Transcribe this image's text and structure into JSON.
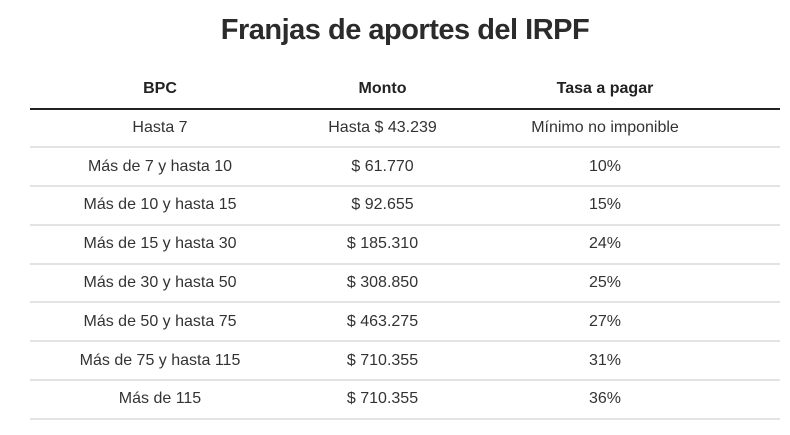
{
  "title": "Franjas de aportes del IRPF",
  "table": {
    "headers": [
      "BPC",
      "Monto",
      "Tasa a pagar"
    ],
    "rows": [
      [
        "Hasta 7",
        "Hasta $ 43.239",
        "Mínimo no imponible"
      ],
      [
        "Más de 7 y hasta 10",
        "$ 61.770",
        "10%"
      ],
      [
        "Más de 10 y hasta 15",
        "$ 92.655",
        "15%"
      ],
      [
        "Más de 15 y hasta 30",
        "$ 185.310",
        "24%"
      ],
      [
        "Más de 30 y hasta 50",
        "$ 308.850",
        "25%"
      ],
      [
        "Más de 50 y hasta 75",
        "$ 463.275",
        "27%"
      ],
      [
        "Más de 75 y hasta 115",
        "$ 710.355",
        "31%"
      ],
      [
        "Más de 115",
        "$ 710.355",
        "36%"
      ]
    ]
  },
  "chart_data": {
    "type": "table",
    "title": "Franjas de aportes del IRPF",
    "columns": [
      "BPC",
      "Monto",
      "Tasa a pagar"
    ],
    "rows": [
      {
        "BPC": "Hasta 7",
        "Monto": "Hasta $ 43.239",
        "Tasa a pagar": "Mínimo no imponible"
      },
      {
        "BPC": "Más de 7 y hasta 10",
        "Monto": "$ 61.770",
        "Tasa a pagar": "10%"
      },
      {
        "BPC": "Más de 10 y hasta 15",
        "Monto": "$ 92.655",
        "Tasa a pagar": "15%"
      },
      {
        "BPC": "Más de 15 y hasta 30",
        "Monto": "$ 185.310",
        "Tasa a pagar": "24%"
      },
      {
        "BPC": "Más de 30 y hasta 50",
        "Monto": "$ 308.850",
        "Tasa a pagar": "25%"
      },
      {
        "BPC": "Más de 50 y hasta 75",
        "Monto": "$ 463.275",
        "Tasa a pagar": "27%"
      },
      {
        "BPC": "Más de 75 y hasta 115",
        "Monto": "$ 710.355",
        "Tasa a pagar": "31%"
      },
      {
        "BPC": "Más de 115",
        "Monto": "$ 710.355",
        "Tasa a pagar": "36%"
      }
    ],
    "grid": "horizontal row separators",
    "legend": "none"
  },
  "colors": {
    "text": "#333333",
    "header_rule": "#222222",
    "row_rule": "#e3e3e3",
    "background": "#ffffff"
  }
}
